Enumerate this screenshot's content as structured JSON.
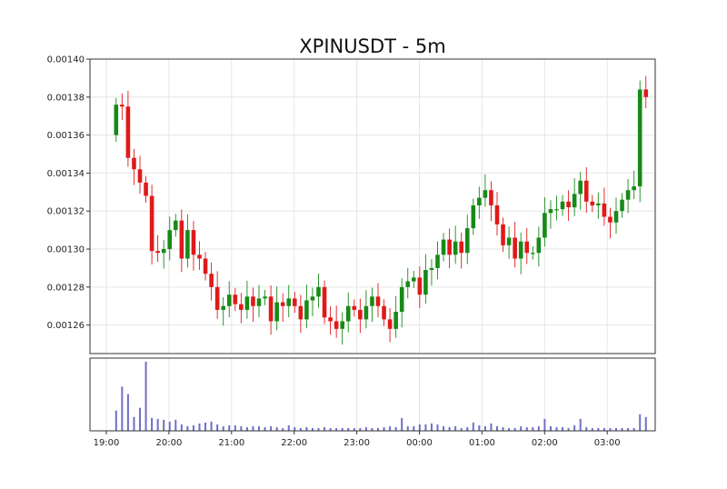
{
  "chart_data": {
    "type": "candlestick",
    "title": "XPINUSDT - 5m",
    "interval_minutes": 5,
    "start_time": "19:10",
    "price": {
      "ylim": [
        0.001245,
        0.0014
      ],
      "ticks": [
        "0.00126",
        "0.00128",
        "0.00130",
        "0.00132",
        "0.00134",
        "0.00136",
        "0.00138",
        "0.00140"
      ],
      "grid": true
    },
    "x_ticks": [
      "19:00",
      "20:00",
      "21:00",
      "22:00",
      "23:00",
      "00:00",
      "01:00",
      "02:00",
      "03:00"
    ],
    "colors": {
      "up": "#178a17",
      "down": "#e01919",
      "volume": "#6f6fc8",
      "grid": "#e6e6e6",
      "axis": "#333333"
    },
    "closes": [
      0.001376,
      0.001375,
      0.001348,
      0.001342,
      0.001335,
      0.001328,
      0.001299,
      0.001298,
      0.0013,
      0.00131,
      0.001315,
      0.001295,
      0.00131,
      0.001297,
      0.001295,
      0.001287,
      0.00128,
      0.001268,
      0.00127,
      0.001276,
      0.001271,
      0.001268,
      0.001275,
      0.00127,
      0.001274,
      0.001275,
      0.001262,
      0.001272,
      0.00127,
      0.001274,
      0.00127,
      0.001263,
      0.001273,
      0.001275,
      0.00128,
      0.001264,
      0.001262,
      0.001258,
      0.001262,
      0.00127,
      0.001268,
      0.001263,
      0.00127,
      0.001275,
      0.00127,
      0.001263,
      0.001258,
      0.001267,
      0.00128,
      0.001283,
      0.001285,
      0.001276,
      0.001289,
      0.00129,
      0.001297,
      0.001305,
      0.001297,
      0.001304,
      0.001298,
      0.001311,
      0.001323,
      0.001327,
      0.001331,
      0.001323,
      0.001313,
      0.001302,
      0.001306,
      0.001295,
      0.001304,
      0.001298,
      0.001298,
      0.001306,
      0.001319,
      0.001321,
      0.001321,
      0.001325,
      0.001322,
      0.001329,
      0.001336,
      0.001325,
      0.001323,
      0.001324,
      0.001317,
      0.001314,
      0.00132,
      0.001326,
      0.001331,
      0.001333,
      0.001384,
      0.00138
    ],
    "volume": [
      22,
      48,
      40,
      15,
      25,
      75,
      14,
      13,
      12,
      10,
      12,
      7,
      5,
      6,
      8,
      9,
      10,
      7,
      5,
      6,
      6,
      5,
      4,
      5,
      5,
      4,
      5,
      4,
      3,
      6,
      4,
      3,
      4,
      3,
      3,
      4,
      3,
      3,
      3,
      3,
      3,
      3,
      4,
      3,
      3,
      4,
      5,
      4,
      14,
      5,
      5,
      7,
      7,
      8,
      7,
      5,
      4,
      5,
      3,
      4,
      9,
      6,
      5,
      8,
      5,
      4,
      3,
      3,
      5,
      4,
      4,
      5,
      13,
      5,
      4,
      4,
      3,
      6,
      13,
      4,
      3,
      3,
      3,
      3,
      3,
      3,
      3,
      3,
      18,
      15
    ]
  }
}
